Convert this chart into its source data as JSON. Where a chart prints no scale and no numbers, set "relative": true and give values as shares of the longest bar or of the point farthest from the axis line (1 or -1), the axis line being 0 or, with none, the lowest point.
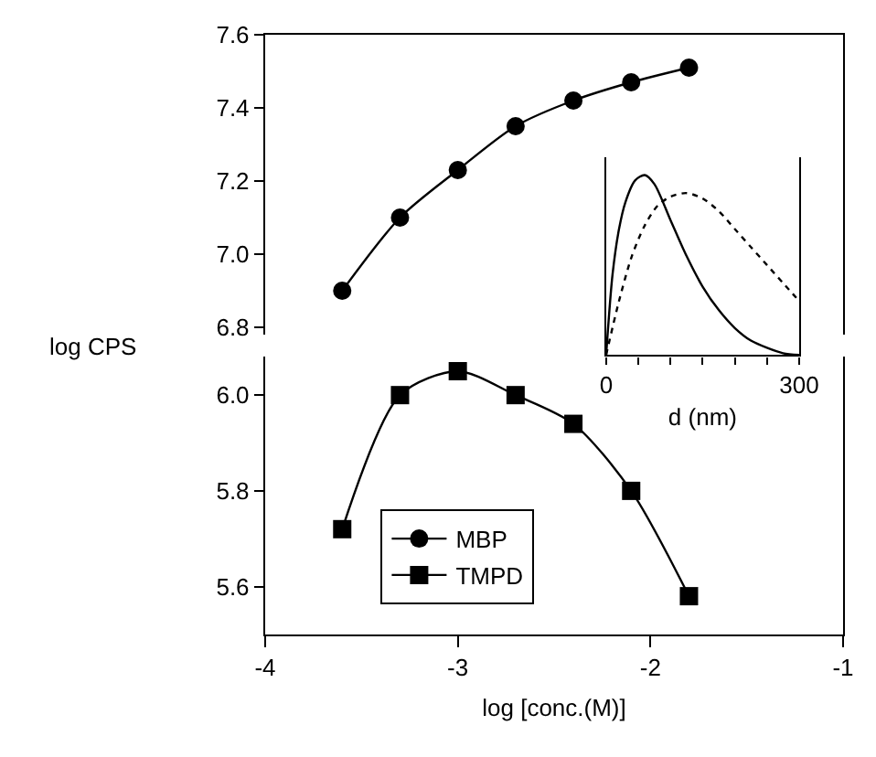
{
  "chart_data": [
    {
      "type": "line",
      "ylabel": "log CPS",
      "x": [
        -3.6,
        -3.3,
        -3.0,
        -2.7,
        -2.4,
        -2.1,
        -1.8
      ],
      "xlim": [
        -4,
        -1
      ],
      "ylim": [
        6.78,
        7.6
      ],
      "yticks": [
        6.8,
        {
          "value": 7,
          "label": "7.0"
        },
        7.2,
        7.4,
        7.6
      ],
      "tick_labels": "y",
      "marker": "circle",
      "series": [
        {
          "name": "MBP",
          "color": "#000000",
          "values": [
            6.9,
            7.1,
            7.23,
            7.35,
            7.42,
            7.47,
            7.51
          ]
        }
      ]
    },
    {
      "type": "line",
      "xlabel": "log [conc.(M)]",
      "x": [
        -3.6,
        -3.3,
        -3.0,
        -2.7,
        -2.4,
        -2.1,
        -1.8
      ],
      "xlim": [
        -4,
        -1
      ],
      "xticks": [
        -4,
        -3,
        -2,
        -1
      ],
      "ylim": [
        5.5,
        6.08
      ],
      "yticks": [
        5.6,
        5.8,
        {
          "value": 6,
          "label": "6.0"
        }
      ],
      "marker": "square",
      "legend": "bottom",
      "series": [
        {
          "name": "TMPD",
          "color": "#000000",
          "values": [
            5.72,
            6.0,
            6.05,
            6.0,
            5.94,
            5.8,
            5.58
          ]
        }
      ]
    },
    {
      "type": "line",
      "xlabel": "d (nm)",
      "relative": true,
      "xlim": [
        0,
        300
      ],
      "xticks": [
        0,
        {
          "value": 50,
          "label": null
        },
        {
          "value": 100,
          "label": null
        },
        {
          "value": 150,
          "label": null
        },
        {
          "value": 200,
          "label": null
        },
        {
          "value": 250,
          "label": null
        },
        300
      ],
      "tick_labels": "x",
      "marker": "none",
      "series": [
        {
          "color": "#000000",
          "line_style": "solid",
          "x": [
            0,
            10,
            20,
            30,
            45,
            60,
            75,
            100,
            125,
            150,
            175,
            200,
            225,
            250,
            275,
            300
          ],
          "values": [
            0,
            0.45,
            0.7,
            0.85,
            0.97,
            1,
            0.95,
            0.75,
            0.55,
            0.38,
            0.25,
            0.15,
            0.08,
            0.04,
            0.01,
            0
          ]
        },
        {
          "color": "#000000",
          "line_style": "dotted",
          "x": [
            0,
            20,
            40,
            60,
            80,
            100,
            125,
            150,
            175,
            200,
            225,
            250,
            275,
            300
          ],
          "values": [
            0,
            0.3,
            0.55,
            0.72,
            0.83,
            0.88,
            0.9,
            0.87,
            0.8,
            0.7,
            0.6,
            0.5,
            0.4,
            0.3
          ]
        }
      ]
    }
  ]
}
